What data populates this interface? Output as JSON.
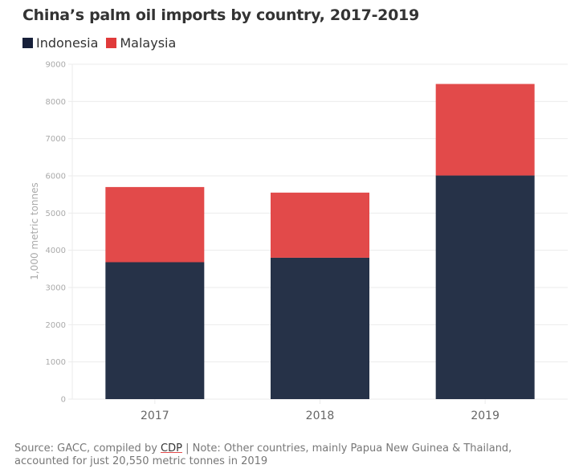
{
  "chart_data": {
    "type": "bar",
    "stacked": true,
    "title": "China’s palm oil imports by country, 2017-2019",
    "xlabel": "",
    "ylabel": "1,000 metric tonnes",
    "categories": [
      "2017",
      "2018",
      "2019"
    ],
    "series": [
      {
        "name": "Indonesia",
        "color": "#263248",
        "values": [
          3680,
          3800,
          6010
        ]
      },
      {
        "name": "Malaysia",
        "color": "#e24a4a",
        "values": [
          2020,
          1750,
          2460
        ]
      }
    ],
    "ylim": [
      0,
      9000
    ],
    "yticks": [
      0,
      1000,
      2000,
      3000,
      4000,
      5000,
      6000,
      7000,
      8000,
      9000
    ],
    "grid": true,
    "legend": "top-left"
  },
  "legend": {
    "items": [
      {
        "label": "Indonesia",
        "color": "#17203a"
      },
      {
        "label": "Malaysia",
        "color": "#e03a3a"
      }
    ]
  },
  "footer": {
    "prefix": "Source: GACC, compiled by ",
    "link": "CDP",
    "suffix": " | Note: Other countries, mainly Papua New Guinea & Thailand, accounted for just 20,550 metric tonnes in 2019"
  }
}
